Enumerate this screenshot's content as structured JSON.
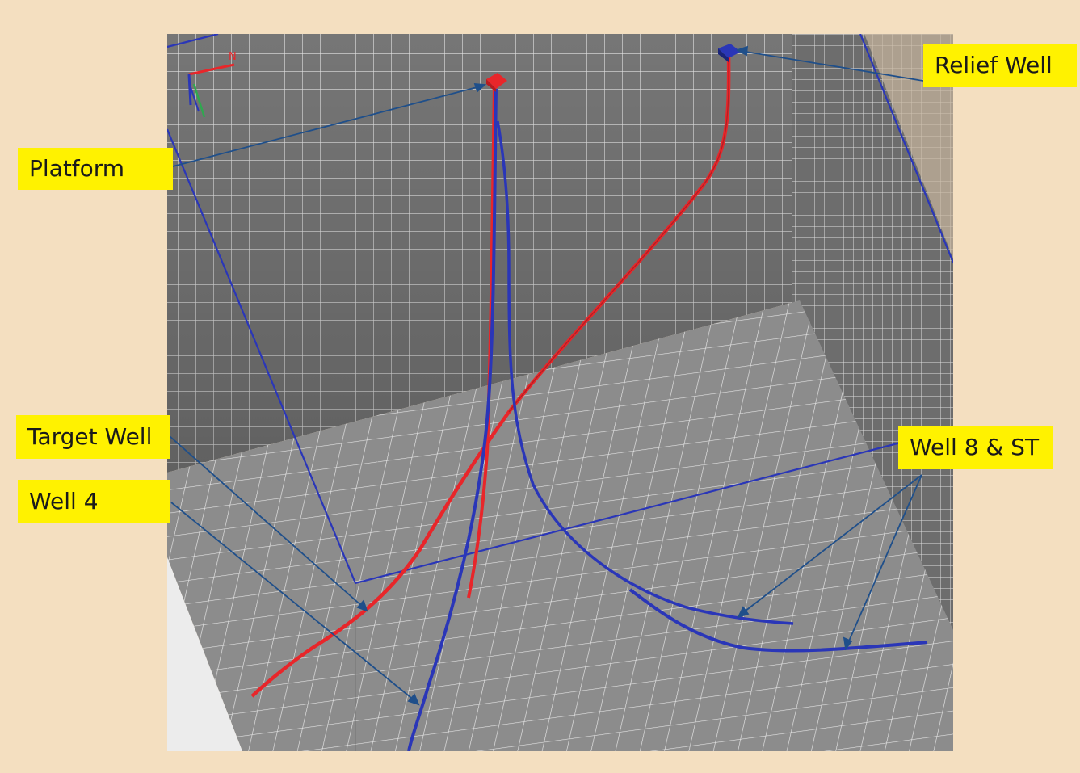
{
  "labels": {
    "platform": "Platform",
    "relief_well": "Relief Well",
    "target_well": "Target Well",
    "well_4": "Well 4",
    "well_8_st": "Well 8 & ST"
  },
  "compass": {
    "north": "N"
  },
  "colors": {
    "background": "#f4dfc0",
    "callout": "#fff200",
    "red_trajectory": "#e8262a",
    "blue_trajectory": "#2a36b8",
    "grid_line": "#e6e6e6",
    "wall_dark": "#6f6f6f",
    "floor": "#8a8a8a"
  },
  "icons": [
    "compass-axes-icon",
    "platform-marker-icon",
    "relief-well-marker-icon"
  ]
}
